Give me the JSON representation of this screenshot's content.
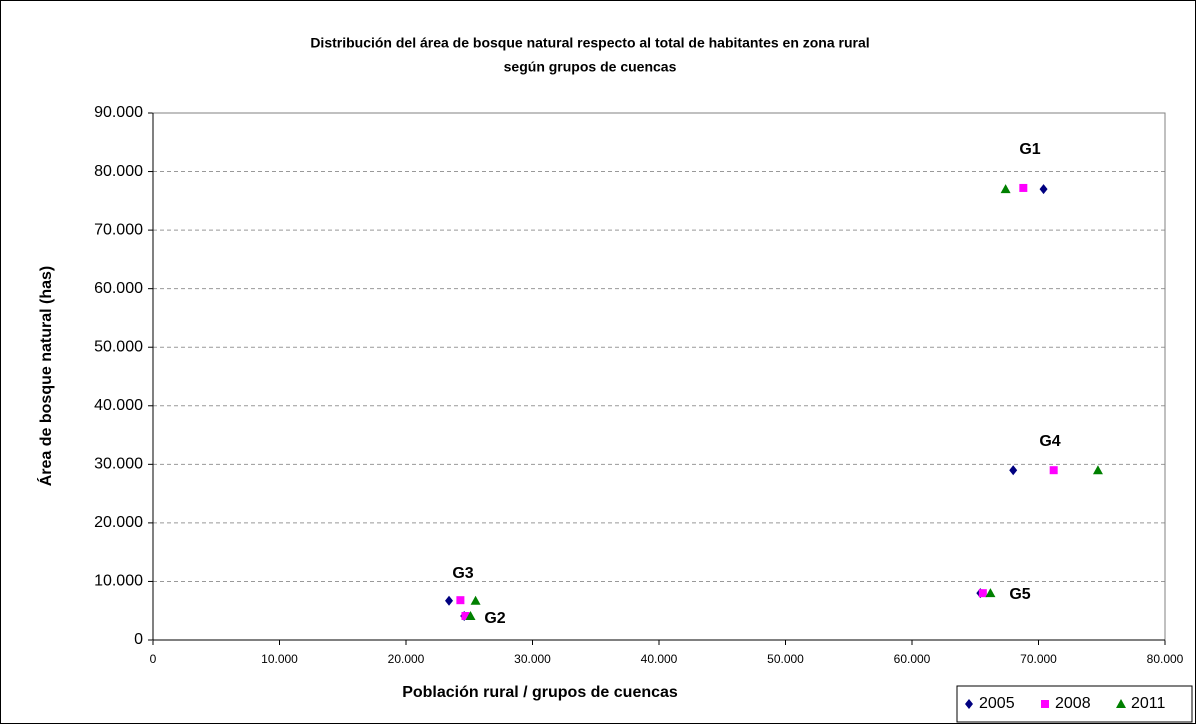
{
  "chart_data": {
    "type": "scatter",
    "title": [
      "Distribución del área de bosque natural respecto al total de habitantes en zona rural",
      "según grupos de cuencas"
    ],
    "x_label": "Población rural / grupos de cuencas",
    "y_label": "Área de bosque natural (has)",
    "xlim": [
      0,
      80000
    ],
    "ylim": [
      0,
      90000
    ],
    "xticks": [
      0,
      {
        "value": 10000,
        "label": "10.000"
      },
      {
        "value": 20000,
        "label": "20.000"
      },
      {
        "value": 30000,
        "label": "30.000"
      },
      {
        "value": 40000,
        "label": "40.000"
      },
      {
        "value": 50000,
        "label": "50.000"
      },
      {
        "value": 60000,
        "label": "60.000"
      },
      {
        "value": 70000,
        "label": "70.000"
      },
      {
        "value": 80000,
        "label": "80.000"
      }
    ],
    "yticks": [
      0,
      {
        "value": 10000,
        "label": "10.000"
      },
      {
        "value": 20000,
        "label": "20.000"
      },
      {
        "value": 30000,
        "label": "30.000"
      },
      {
        "value": 40000,
        "label": "40.000"
      },
      {
        "value": 50000,
        "label": "50.000"
      },
      {
        "value": 60000,
        "label": "60.000"
      },
      {
        "value": 70000,
        "label": "70.000"
      },
      {
        "value": 80000,
        "label": "80.000"
      },
      {
        "value": 90000,
        "label": "90.000"
      }
    ],
    "grid": true,
    "legend": "bottom-right",
    "series": [
      {
        "name": "2005",
        "color": "#000080",
        "marker": "diamond",
        "x": [
          70400,
          68000,
          65400,
          23400,
          24600
        ],
        "values": [
          77000,
          29000,
          8000,
          6700,
          4100
        ]
      },
      {
        "name": "2008",
        "color": "#ff00ff",
        "marker": "square",
        "x": [
          68800,
          71200,
          65600,
          24300,
          24700
        ],
        "values": [
          77200,
          29000,
          8000,
          6800,
          4100
        ]
      },
      {
        "name": "2011",
        "color": "#008000",
        "marker": "triangle",
        "x": [
          67400,
          74700,
          66200,
          25500,
          25100
        ],
        "values": [
          77000,
          29000,
          8000,
          6700,
          4100
        ]
      }
    ],
    "annotations": [
      "G1",
      "G4",
      "G5",
      "G3",
      "G2"
    ]
  }
}
